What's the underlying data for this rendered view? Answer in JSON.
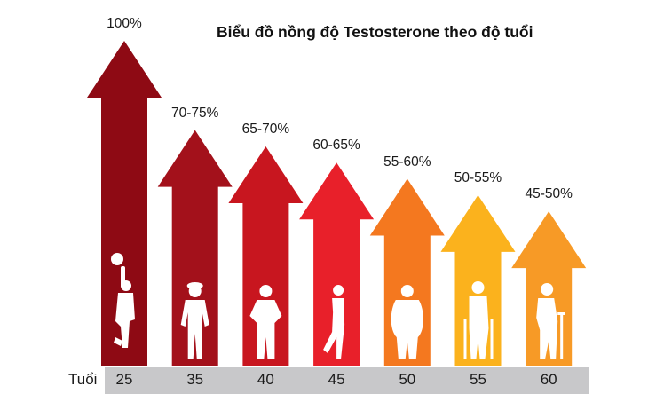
{
  "chart_data": {
    "type": "bar",
    "title": "Biểu đồ nồng độ Testosterone theo độ tuổi",
    "xlabel": "Tuổi",
    "ylabel": "",
    "categories": [
      "25",
      "35",
      "40",
      "45",
      "50",
      "55",
      "60"
    ],
    "data_labels": [
      "100%",
      "70-75%",
      "65-70%",
      "60-65%",
      "55-60%",
      "50-55%",
      "45-50%"
    ],
    "values": [
      100,
      72.5,
      67.5,
      62.5,
      57.5,
      52.5,
      47.5
    ],
    "ylim": [
      0,
      100
    ],
    "grid": false,
    "colors": [
      "#8e0a14",
      "#a3111b",
      "#c8161f",
      "#e8202a",
      "#f4781f",
      "#fbb21d",
      "#f79a26"
    ],
    "figures": [
      "basketball-player",
      "standing-man",
      "man-hands-on-hips",
      "walking-man",
      "heavy-man",
      "man-with-cane",
      "elderly-man-with-cane"
    ]
  }
}
